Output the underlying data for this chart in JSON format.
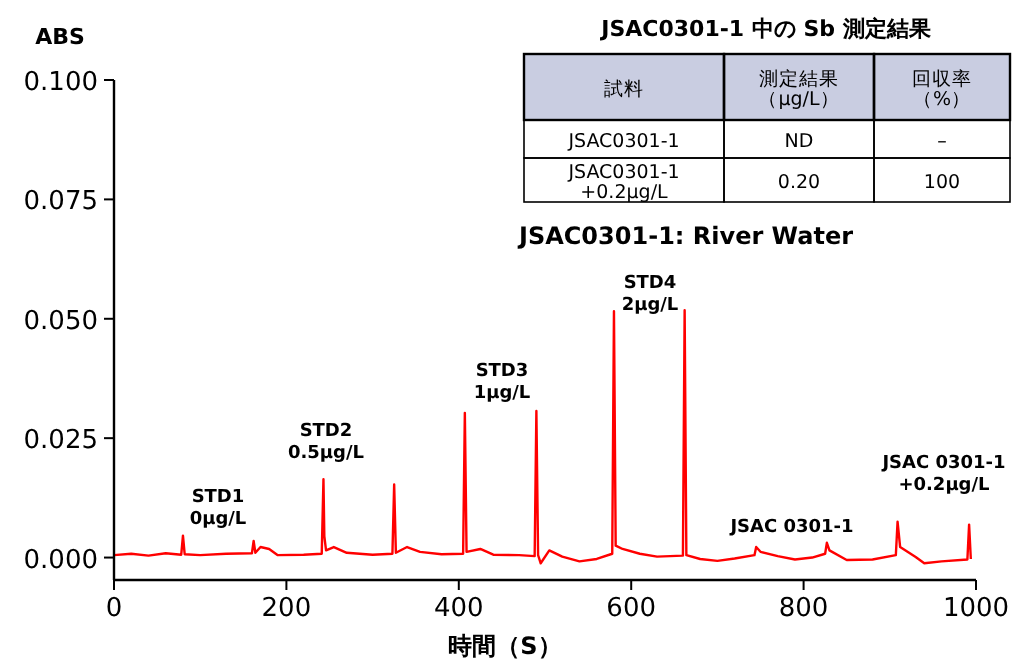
{
  "chart_data": {
    "type": "line",
    "title": "JSAC0301-1: River Water",
    "xlabel": "時間（S）",
    "ylabel": "ABS",
    "xlim": [
      0,
      1000
    ],
    "xticks": [
      0,
      200,
      400,
      600,
      800,
      1000
    ],
    "ylim": [
      -0.0047,
      0.1
    ],
    "yticks": [
      {
        "value": 0,
        "label": "0.000"
      },
      {
        "value": 0.025,
        "label": "0.025"
      },
      {
        "value": 0.05,
        "label": "0.050"
      },
      {
        "value": 0.075,
        "label": "0.075"
      },
      {
        "value": 0.1,
        "label": "0.100"
      }
    ],
    "grid": false,
    "marker": "none",
    "line_style": "solid",
    "series": [
      {
        "color": "#ff0000",
        "x": [
          0,
          20,
          40,
          60,
          78,
          80,
          82,
          100,
          130,
          160,
          162,
          164,
          170,
          180,
          190,
          220,
          241,
          243,
          244,
          246,
          255,
          270,
          300,
          323,
          325,
          327,
          340,
          355,
          380,
          405,
          407,
          409,
          425,
          440,
          470,
          488,
          490,
          492,
          495,
          505,
          520,
          540,
          560,
          578,
          580,
          582,
          590,
          610,
          630,
          660,
          662,
          664,
          680,
          700,
          720,
          743,
          745,
          750,
          770,
          790,
          810,
          825,
          827,
          830,
          850,
          880,
          907,
          909,
          912,
          930,
          940,
          960,
          990,
          992,
          994
        ],
        "values": [
          0.0005,
          0.0008,
          0.0004,
          0.0009,
          0.0006,
          0.0046,
          0.0007,
          0.0005,
          0.0008,
          0.0009,
          0.0035,
          0.001,
          0.0022,
          0.0018,
          0.0005,
          0.0006,
          0.0008,
          0.0164,
          0.0045,
          0.0015,
          0.0022,
          0.001,
          0.0006,
          0.0008,
          0.0153,
          0.001,
          0.0022,
          0.0012,
          0.0007,
          0.0008,
          0.0303,
          0.0012,
          0.0018,
          0.0006,
          0.0005,
          0.0003,
          0.0307,
          0.0005,
          -0.0012,
          0.0015,
          0.0002,
          -0.0008,
          -0.0003,
          0.0008,
          0.0516,
          0.0025,
          0.0018,
          0.0008,
          0.0002,
          0.0004,
          0.0518,
          0.0005,
          -0.0003,
          -0.0007,
          -0.0002,
          0.0005,
          0.0022,
          0.0012,
          0.0003,
          -0.0004,
          0.0,
          0.0008,
          0.0031,
          0.0015,
          -0.0005,
          -0.0004,
          0.0005,
          0.0075,
          0.0022,
          0.0001,
          -0.0012,
          -0.0008,
          -0.0004,
          0.0069,
          -0.0003
        ]
      }
    ],
    "annotations": [
      "JSAC0301-1 中の Sb 測定結果",
      "試料",
      "測定結果（μg/L）",
      "回収率（%）",
      "JSAC0301-1",
      "ND",
      "–",
      "JSAC0301-1\n+0.2μg/L",
      "0.20",
      "100",
      "STD1\n0μg/L",
      "STD2\n0.5μg/L",
      "STD3\n1μg/L",
      "STD4\n2μg/L",
      "JSAC 0301-1",
      "JSAC 0301-1\n+0.2μg/L"
    ]
  }
}
